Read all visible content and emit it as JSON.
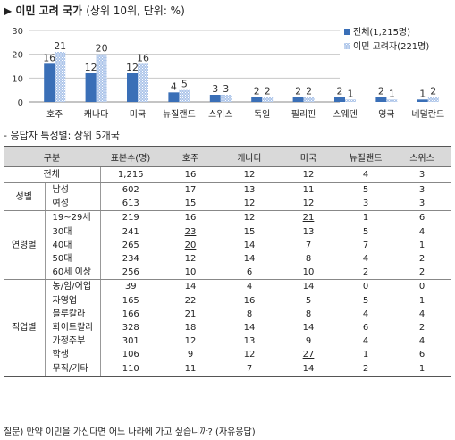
{
  "title": {
    "marker": "▶",
    "main": "이민 고려 국가",
    "sub": "(상위 10위, 단위: %)"
  },
  "colors": {
    "series1": "#3a6fb7",
    "series2": "#a9c2e6",
    "gridline": "#c8c8c8"
  },
  "chart_data": {
    "type": "bar",
    "categories": [
      "호주",
      "캐나다",
      "미국",
      "뉴질랜드",
      "스위스",
      "독일",
      "필리핀",
      "스웨덴",
      "영국",
      "네덜란드"
    ],
    "series": [
      {
        "name": "전체(1,215명)",
        "values": [
          16,
          12,
          12,
          4,
          3,
          2,
          2,
          2,
          2,
          1
        ]
      },
      {
        "name": "이민 고려자(221명)",
        "values": [
          21,
          20,
          16,
          5,
          3,
          2,
          2,
          1,
          1,
          2
        ]
      }
    ],
    "yticks": [
      0,
      10,
      20,
      30
    ],
    "ylim": [
      0,
      30
    ],
    "grid": true,
    "legend_position": "right"
  },
  "table_section_title": "- 응답자 특성별: 상위 5개국",
  "table": {
    "headers": [
      "구분",
      "표본수(명)",
      "호주",
      "캐나다",
      "미국",
      "뉴질랜드",
      "스위스"
    ],
    "total": {
      "label": "전체",
      "values": [
        "1,215",
        "16",
        "12",
        "12",
        "4",
        "3"
      ]
    },
    "groups": [
      {
        "name": "성별",
        "rows": [
          {
            "label": "남성",
            "values": [
              "602",
              "17",
              "13",
              "11",
              "5",
              "3"
            ]
          },
          {
            "label": "여성",
            "values": [
              "613",
              "15",
              "12",
              "12",
              "3",
              "3"
            ]
          }
        ]
      },
      {
        "name": "연령별",
        "rows": [
          {
            "label": "19~29세",
            "values": [
              "219",
              "16",
              "12",
              "21",
              "1",
              "6"
            ],
            "underline": [
              3
            ]
          },
          {
            "label": "30대",
            "values": [
              "241",
              "23",
              "15",
              "13",
              "5",
              "4"
            ],
            "underline": [
              1
            ]
          },
          {
            "label": "40대",
            "values": [
              "265",
              "20",
              "14",
              "7",
              "7",
              "1"
            ],
            "underline": [
              1
            ]
          },
          {
            "label": "50대",
            "values": [
              "234",
              "12",
              "14",
              "8",
              "4",
              "2"
            ]
          },
          {
            "label": "60세 이상",
            "values": [
              "256",
              "10",
              "6",
              "10",
              "2",
              "2"
            ]
          }
        ]
      },
      {
        "name": "직업별",
        "rows": [
          {
            "label": "농/임/어업",
            "values": [
              "39",
              "14",
              "4",
              "14",
              "0",
              "0"
            ]
          },
          {
            "label": "자영업",
            "values": [
              "165",
              "22",
              "16",
              "5",
              "5",
              "1"
            ]
          },
          {
            "label": "블루칼라",
            "values": [
              "166",
              "21",
              "8",
              "8",
              "4",
              "4"
            ]
          },
          {
            "label": "화이트칼라",
            "values": [
              "328",
              "18",
              "14",
              "14",
              "6",
              "2"
            ]
          },
          {
            "label": "가정주부",
            "values": [
              "301",
              "12",
              "13",
              "9",
              "4",
              "4"
            ]
          },
          {
            "label": "학생",
            "values": [
              "106",
              "9",
              "12",
              "27",
              "1",
              "6"
            ],
            "underline": [
              3
            ]
          },
          {
            "label": "무직/기타",
            "values": [
              "110",
              "11",
              "7",
              "14",
              "2",
              "1"
            ]
          }
        ]
      }
    ]
  },
  "footnote": "질문) 만약 이민을 가신다면 어느 나라에 가고 싶습니까? (자유응답)"
}
